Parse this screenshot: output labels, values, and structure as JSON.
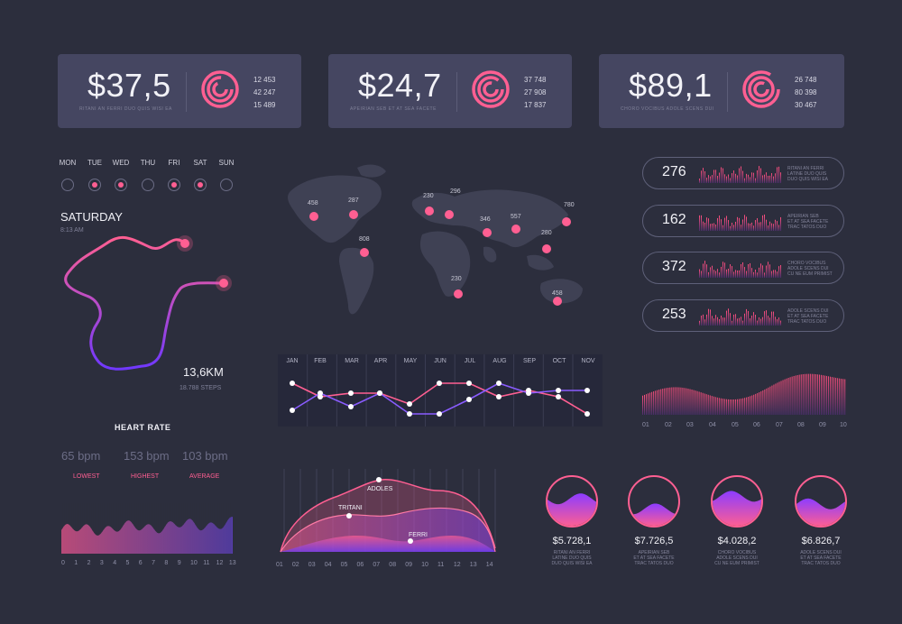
{
  "stat_cards": [
    {
      "value": "$37,5",
      "subtitle": "RITANI AN FERRI DUO QUIS WISI EA",
      "numbers": [
        "12 453",
        "42 247",
        "15 489"
      ]
    },
    {
      "value": "$24,7",
      "subtitle": "APEIRIAN SEB ET AT SEA FACETE",
      "numbers": [
        "37 748",
        "27 908",
        "17 837"
      ]
    },
    {
      "value": "$89,1",
      "subtitle": "CHORO VOCIBUS ADOLE SCENS DUI",
      "numbers": [
        "26 748",
        "80 398",
        "30 467"
      ]
    }
  ],
  "week": {
    "days": [
      "MON",
      "TUE",
      "WED",
      "THU",
      "FRI",
      "SAT",
      "SUN"
    ],
    "active": [
      false,
      true,
      true,
      false,
      true,
      true,
      false
    ]
  },
  "route": {
    "day": "SATURDAY",
    "time": "8:13 AM",
    "distance": "13,6KM",
    "steps": "18.788 STEPS"
  },
  "map_points": [
    "458",
    "287",
    "808",
    "230",
    "296",
    "346",
    "557",
    "780",
    "280",
    "230",
    "458"
  ],
  "pills": [
    {
      "value": "276",
      "text": [
        "RITANI AN FERRI",
        "LATINE DUO QUIS",
        "DUO QUIS WISI EA"
      ]
    },
    {
      "value": "162",
      "text": [
        "APEIRIAN SEB",
        "ET AT SEA FACETE",
        "TRAC TATOS DUO"
      ]
    },
    {
      "value": "372",
      "text": [
        "CHORO VOCIBUS",
        "ADOLE SCENS DUI",
        "CU NE EUM PRIMIST"
      ]
    },
    {
      "value": "253",
      "text": [
        "ADOLE SCENS DUI",
        "ET AT SEA FACETE",
        "TRAC TATOS DUO"
      ]
    }
  ],
  "monthly": {
    "months": [
      "JAN",
      "FEB",
      "MAR",
      "APR",
      "MAY",
      "JUN",
      "JUL",
      "AUG",
      "SEP",
      "OCT",
      "NOV"
    ]
  },
  "bars_axis": [
    "01",
    "02",
    "03",
    "04",
    "05",
    "06",
    "07",
    "08",
    "09",
    "10"
  ],
  "heart_rate": {
    "title": "HEART RATE",
    "stats": [
      {
        "value": "65 bpm",
        "label": "LOWEST"
      },
      {
        "value": "153 bpm",
        "label": "HIGHEST"
      },
      {
        "value": "103 bpm",
        "label": "AVERAGE"
      }
    ],
    "axis": [
      "0",
      "1",
      "2",
      "3",
      "4",
      "5",
      "6",
      "7",
      "8",
      "9",
      "10",
      "11",
      "12",
      "13"
    ]
  },
  "area_chart": {
    "labels": [
      "ADOLES",
      "TRITANI",
      "FERRI"
    ],
    "axis": [
      "01",
      "02",
      "03",
      "04",
      "05",
      "06",
      "07",
      "08",
      "09",
      "10",
      "11",
      "12",
      "13",
      "14"
    ]
  },
  "coins": [
    {
      "value": "$5.728,1",
      "text": [
        "RITANI AN FERRI",
        "LATINE DUO QUIS",
        "DUO QUIS WISI EA"
      ],
      "level": 0.55
    },
    {
      "value": "$7.726,5",
      "text": [
        "APEIRIAN SEB",
        "ET AT SEA FACETE",
        "TRAC TATOS DUO"
      ],
      "level": 0.35
    },
    {
      "value": "$4.028,2",
      "text": [
        "CHORO VOCIBUS",
        "ADOLE SCENS DUI",
        "CU NE EUM PRIMIST"
      ],
      "level": 0.6
    },
    {
      "value": "$6.826,7",
      "text": [
        "ADOLE SCENS DUI",
        "ET AT SEA FACETE",
        "TRAC TATOS DUO"
      ],
      "level": 0.45
    }
  ],
  "colors": {
    "background": "#2c2e3d",
    "card": "#454661",
    "accent_pink": "#ff5f92",
    "accent_purple": "#7a3cff"
  }
}
